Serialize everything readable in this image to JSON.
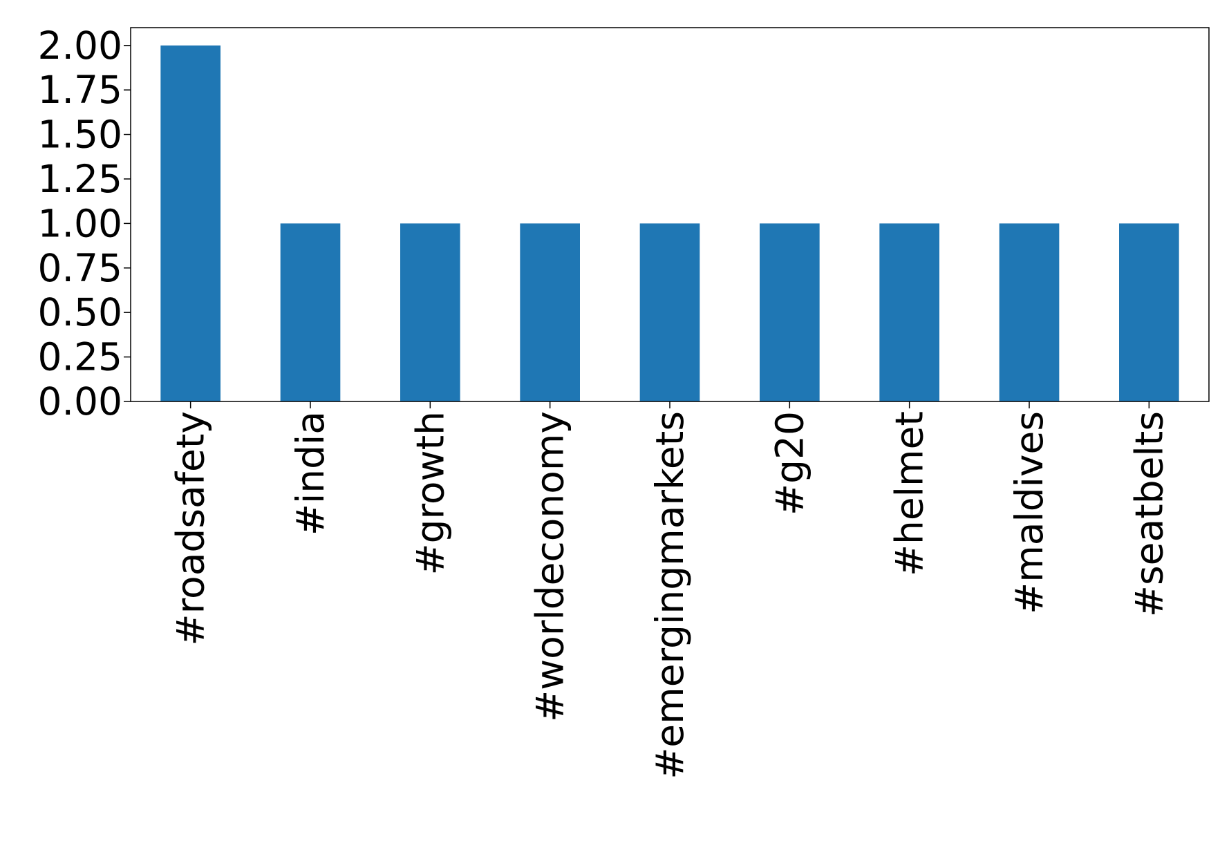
{
  "chart_data": {
    "type": "bar",
    "categories": [
      "#roadsafety",
      "#india",
      "#growth",
      "#worldeconomy",
      "#emergingmarkets",
      "#g20",
      "#helmet",
      "#maldives",
      "#seatbelts"
    ],
    "values": [
      2,
      1,
      1,
      1,
      1,
      1,
      1,
      1,
      1
    ],
    "color": "#1f77b4",
    "ylim": [
      0,
      2.1
    ],
    "yticks": [
      {
        "value": 0,
        "label": "0.00"
      },
      {
        "value": 0.25,
        "label": "0.25"
      },
      {
        "value": 0.5,
        "label": "0.50"
      },
      {
        "value": 0.75,
        "label": "0.75"
      },
      {
        "value": 1,
        "label": "1.00"
      },
      {
        "value": 1.25,
        "label": "1.25"
      },
      {
        "value": 1.5,
        "label": "1.50"
      },
      {
        "value": 1.75,
        "label": "1.75"
      },
      {
        "value": 2,
        "label": "2.00"
      }
    ],
    "grid": false
  }
}
